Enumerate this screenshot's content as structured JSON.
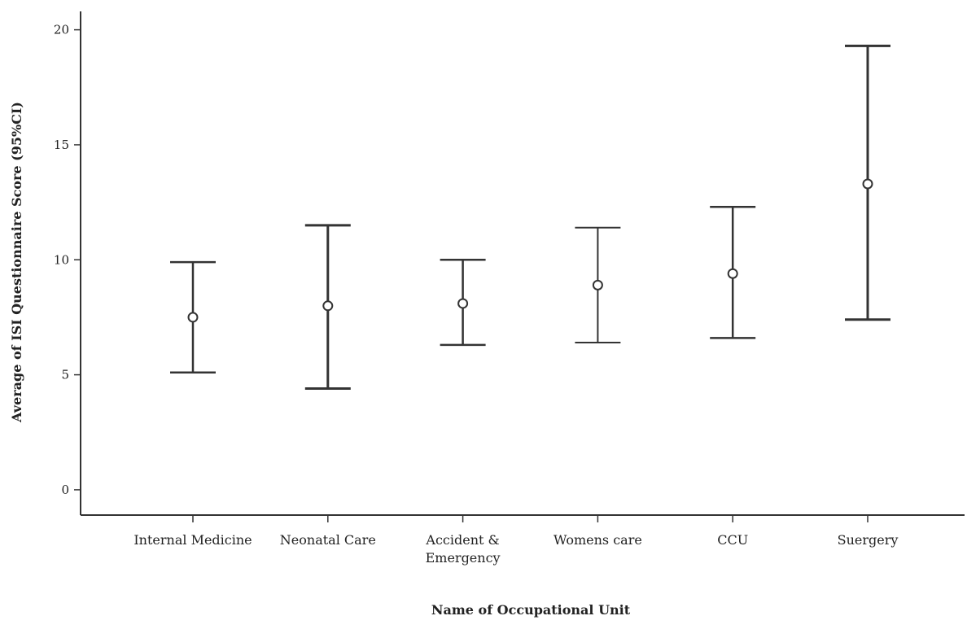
{
  "chart_data": {
    "type": "errorbar",
    "title": "",
    "xlabel": "Name of Occupational Unit",
    "ylabel": "Average of ISI Questionnaire Score (95%CI)",
    "ylim": [
      -1.1,
      20.8
    ],
    "yticks": [
      0,
      5,
      10,
      15,
      20
    ],
    "grid": false,
    "categories": [
      [
        "Internal Medicine"
      ],
      [
        "Neonatal Care"
      ],
      [
        "Accident &",
        "Emergency"
      ],
      [
        "Womens care"
      ],
      [
        "CCU"
      ],
      [
        "Suergery"
      ]
    ],
    "series": [
      {
        "mean": [
          7.5,
          8.0,
          8.1,
          8.9,
          9.4,
          13.3
        ],
        "lower": [
          5.1,
          4.4,
          6.3,
          6.4,
          6.6,
          7.4
        ],
        "upper": [
          9.9,
          11.5,
          10.0,
          11.4,
          12.3,
          19.3
        ]
      }
    ],
    "colors": {
      "axis": "#333333",
      "bars": "#333333",
      "marker": "#333333"
    }
  }
}
